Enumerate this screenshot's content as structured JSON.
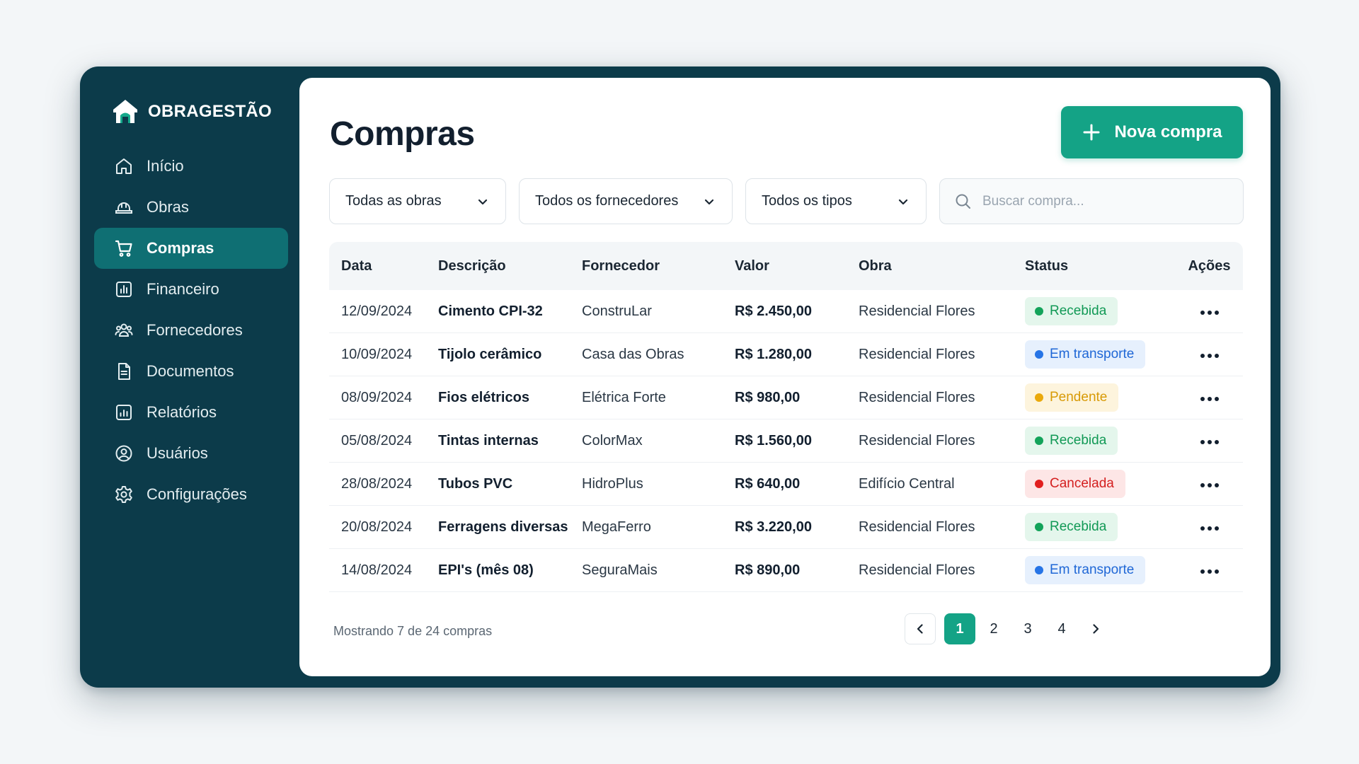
{
  "brand": {
    "name": "OBRAGESTÃO",
    "logo_icon": "house-logo-icon"
  },
  "sidebar": {
    "items": [
      {
        "label": "Início",
        "icon": "home-icon",
        "active": false
      },
      {
        "label": "Obras",
        "icon": "helmet-icon",
        "active": false
      },
      {
        "label": "Compras",
        "icon": "cart-icon",
        "active": true
      },
      {
        "label": "Financeiro",
        "icon": "chart-icon",
        "active": false
      },
      {
        "label": "Fornecedores",
        "icon": "users-icon",
        "active": false
      },
      {
        "label": "Documentos",
        "icon": "document-icon",
        "active": false
      },
      {
        "label": "Relatórios",
        "icon": "report-icon",
        "active": false
      },
      {
        "label": "Usuários",
        "icon": "user-icon",
        "active": false
      },
      {
        "label": "Configurações",
        "icon": "gear-icon",
        "active": false
      }
    ]
  },
  "header": {
    "title": "Compras",
    "new_button_label": "Nova compra"
  },
  "filters": {
    "obras": "Todas as obras",
    "fornecedores": "Todos os fornecedores",
    "tipos": "Todos os tipos",
    "search_placeholder": "Buscar compra..."
  },
  "table": {
    "columns": [
      "Data",
      "Descrição",
      "Fornecedor",
      "Valor",
      "Obra",
      "Status",
      "Ações"
    ],
    "rows": [
      {
        "data": "12/09/2024",
        "descricao": "Cimento CPI-32",
        "fornecedor": "ConstruLar",
        "valor": "R$ 2.450,00",
        "obra": "Residencial Flores",
        "status": "Recebida"
      },
      {
        "data": "10/09/2024",
        "descricao": "Tijolo cerâmico",
        "fornecedor": "Casa das Obras",
        "valor": "R$ 1.280,00",
        "obra": "Residencial Flores",
        "status": "Em transporte"
      },
      {
        "data": "08/09/2024",
        "descricao": "Fios elétricos",
        "fornecedor": "Elétrica Forte",
        "valor": "R$ 980,00",
        "obra": "Residencial Flores",
        "status": "Pendente"
      },
      {
        "data": "05/08/2024",
        "descricao": "Tintas internas",
        "fornecedor": "ColorMax",
        "valor": "R$ 1.560,00",
        "obra": "Residencial Flores",
        "status": "Recebida"
      },
      {
        "data": "28/08/2024",
        "descricao": "Tubos PVC",
        "fornecedor": "HidroPlus",
        "valor": "R$ 640,00",
        "obra": "Edifício Central",
        "status": "Cancelada"
      },
      {
        "data": "20/08/2024",
        "descricao": "Ferragens diversas",
        "fornecedor": "MegaFerro",
        "valor": "R$ 3.220,00",
        "obra": "Residencial Flores",
        "status": "Recebida"
      },
      {
        "data": "14/08/2024",
        "descricao": "EPI's (mês 08)",
        "fornecedor": "SeguraMais",
        "valor": "R$ 890,00",
        "obra": "Residencial Flores",
        "status": "Em transporte"
      }
    ]
  },
  "status_colors": {
    "Recebida": "#13a35a",
    "Em transporte": "#2674e6",
    "Pendente": "#eaa90c",
    "Cancelada": "#e11f1f"
  },
  "footer": {
    "summary": "Mostrando 7 de 24 compras",
    "pages": [
      "1",
      "2",
      "3",
      "4"
    ],
    "current_page": "1"
  },
  "colors": {
    "sidebar_bg": "#0c3b4a",
    "accent": "#14a386",
    "active_nav": "#0f6f73"
  }
}
